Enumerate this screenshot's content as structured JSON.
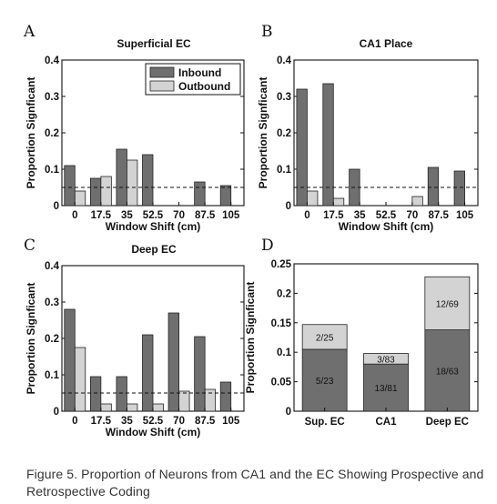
{
  "colors": {
    "inbound": "#6f6f6f",
    "outbound": "#d3d3d3",
    "axis": "#111111"
  },
  "legend": {
    "items": [
      "Inbound",
      "Outbound"
    ],
    "placement": "top-right (panel A)"
  },
  "chart_data": [
    {
      "panel": "A",
      "type": "bar",
      "title": "Superficial EC",
      "xlabel": "Window Shift (cm)",
      "ylabel": "Proportion Signficant",
      "categories": [
        "0",
        "17.5",
        "35",
        "52.5",
        "70",
        "87.5",
        "105"
      ],
      "series": [
        {
          "name": "Inbound",
          "values": [
            0.11,
            0.075,
            0.155,
            0.14,
            0,
            0.065,
            0.055
          ]
        },
        {
          "name": "Outbound",
          "values": [
            0.04,
            0.08,
            0.125,
            0,
            0,
            0,
            0
          ]
        }
      ],
      "ylim": [
        0,
        0.4
      ],
      "yticks": [
        "0",
        "0.1",
        "0.2",
        "0.3",
        "0.4"
      ],
      "reference_line": 0.05
    },
    {
      "panel": "B",
      "type": "bar",
      "title": "CA1 Place",
      "xlabel": "Window Shift (cm)",
      "ylabel": "Proportion Signficant",
      "categories": [
        "0",
        "17.5",
        "35",
        "52.5",
        "70",
        "87.5",
        "105"
      ],
      "series": [
        {
          "name": "Inbound",
          "values": [
            0.32,
            0.335,
            0.1,
            0,
            0,
            0.105,
            0.095
          ]
        },
        {
          "name": "Outbound",
          "values": [
            0.04,
            0.02,
            0,
            0,
            0.025,
            0,
            0
          ]
        }
      ],
      "ylim": [
        0,
        0.4
      ],
      "yticks": [
        "0",
        "0.1",
        "0.2",
        "0.3",
        "0.4"
      ],
      "reference_line": 0.05
    },
    {
      "panel": "C",
      "type": "bar",
      "title": "Deep EC",
      "xlabel": "Window Shift (cm)",
      "ylabel": "Proportion Signficant",
      "categories": [
        "0",
        "17.5",
        "35",
        "52.5",
        "70",
        "87.5",
        "105"
      ],
      "series": [
        {
          "name": "Inbound",
          "values": [
            0.28,
            0.095,
            0.095,
            0.21,
            0.27,
            0.205,
            0.08
          ]
        },
        {
          "name": "Outbound",
          "values": [
            0.175,
            0.02,
            0.02,
            0.02,
            0.055,
            0.06,
            0
          ]
        }
      ],
      "ylim": [
        0,
        0.4
      ],
      "yticks": [
        "0",
        "0.1",
        "0.2",
        "0.3",
        "0.4"
      ],
      "reference_line": 0.05
    },
    {
      "panel": "D",
      "type": "bar",
      "stacked": true,
      "title": "",
      "xlabel": "",
      "ylabel": "Proportion Signficant",
      "categories": [
        "Sup. EC",
        "CA1",
        "Deep EC"
      ],
      "series": [
        {
          "name": "Inbound",
          "values": [
            0.105,
            0.08,
            0.138
          ],
          "labels": [
            "5/23",
            "13/81",
            "18/63"
          ]
        },
        {
          "name": "Outbound",
          "values": [
            0.042,
            0.018,
            0.09
          ],
          "labels": [
            "2/25",
            "3/83",
            "12/69"
          ]
        }
      ],
      "ylim": [
        0,
        0.25
      ],
      "yticks": [
        "0",
        "0.05",
        "0.1",
        "0.15",
        "0.2",
        "0.25"
      ]
    }
  ],
  "panel_letters": [
    "A",
    "B",
    "C",
    "D"
  ],
  "caption": "Figure 5. Proportion of Neurons from CA1 and the EC Showing Prospective and Retrospective Coding"
}
